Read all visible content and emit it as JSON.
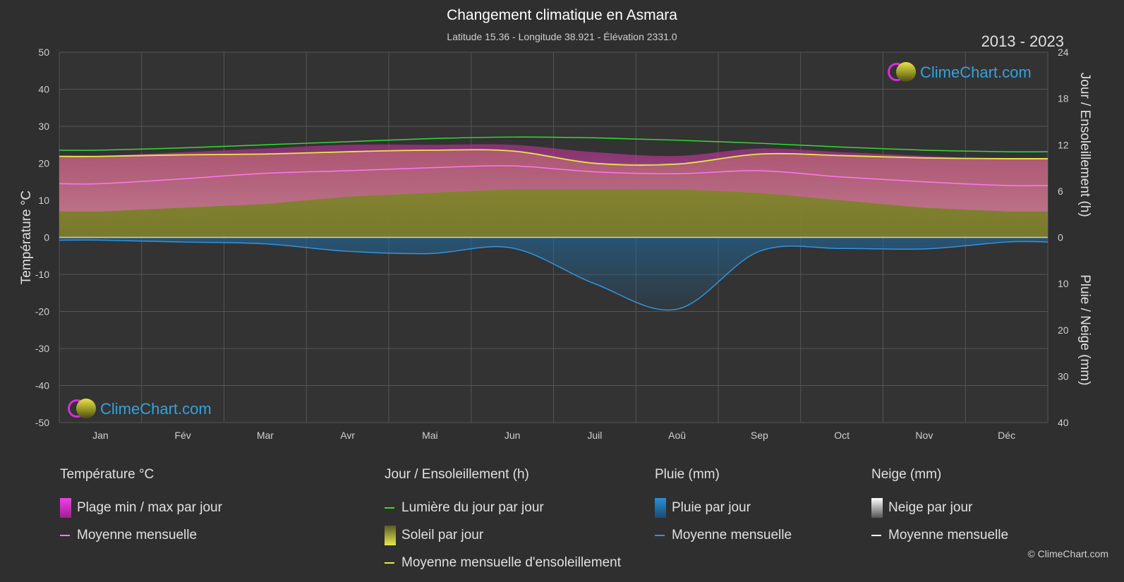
{
  "header": {
    "title": "Changement climatique en Asmara",
    "subtitle": "Latitude 15.36 - Longitude 38.921 - Élévation 2331.0",
    "years": "2013 - 2023"
  },
  "branding": {
    "logo_text": "ClimeChart.com",
    "copyright": "© ClimeChart.com"
  },
  "colors": {
    "background": "#2f2f2f",
    "temp_range": "#e040c8",
    "temp_mean": "#ff77ee",
    "daylight": "#33dd33",
    "sunshine": "#c8c850",
    "sunshine_mean": "#e8e84a",
    "rain": "#2a8fd8",
    "rain_mean": "#2f95e0",
    "snow_mean": "#ffffff"
  },
  "legend": {
    "temperature": {
      "title": "Température °C",
      "range_label": "Plage min / max par jour",
      "mean_label": "Moyenne mensuelle"
    },
    "sun": {
      "title": "Jour / Ensoleillement (h)",
      "daylight_label": "Lumière du jour par jour",
      "sunshine_label": "Soleil par jour",
      "sunshine_mean_label": "Moyenne mensuelle d'ensoleillement"
    },
    "rain": {
      "title": "Pluie (mm)",
      "rain_label": "Pluie par jour",
      "mean_label": "Moyenne mensuelle"
    },
    "snow": {
      "title": "Neige (mm)",
      "snow_label": "Neige par jour",
      "mean_label": "Moyenne mensuelle"
    }
  },
  "chart_data": {
    "type": "line",
    "months": [
      "Jan",
      "Fév",
      "Mar",
      "Avr",
      "Mai",
      "Jun",
      "Juil",
      "Aoû",
      "Sep",
      "Oct",
      "Nov",
      "Déc"
    ],
    "y_left": {
      "label": "Température °C",
      "ticks": [
        50,
        40,
        30,
        20,
        10,
        0,
        -10,
        -20,
        -30,
        -40,
        -50
      ],
      "range": [
        -50,
        50
      ]
    },
    "y_right_top": {
      "label": "Jour / Ensoleillement (h)",
      "ticks": [
        24,
        18,
        12,
        6,
        0
      ],
      "range": [
        0,
        24
      ]
    },
    "y_right_bottom": {
      "label": "Pluie / Neige (mm)",
      "ticks": [
        0,
        10,
        20,
        30,
        40
      ],
      "range": [
        0,
        40
      ]
    },
    "grid": true,
    "series": {
      "temp_max_mean": [
        22,
        23,
        24,
        25,
        25,
        25,
        23,
        22,
        24,
        23,
        22,
        21
      ],
      "temp_min_mean": [
        7,
        8,
        9,
        11,
        12,
        13,
        13,
        13,
        12,
        10,
        8,
        7
      ],
      "temp_mean": [
        14.5,
        15.8,
        17.3,
        18.0,
        18.8,
        19.3,
        17.7,
        17.2,
        18.0,
        16.3,
        15.0,
        14.0
      ],
      "daylight_hours": [
        11.3,
        11.6,
        12.0,
        12.4,
        12.8,
        13.0,
        12.9,
        12.6,
        12.2,
        11.7,
        11.3,
        11.1
      ],
      "sunshine_hours": [
        10.5,
        10.7,
        10.8,
        11.1,
        11.3,
        11.2,
        9.6,
        9.5,
        10.8,
        10.6,
        10.3,
        10.2
      ],
      "rain_mean_mm": [
        0.6,
        1.0,
        1.4,
        3.0,
        3.5,
        2.3,
        10.0,
        15.5,
        3.0,
        2.4,
        2.5,
        1.0
      ],
      "snow_mean_mm": [
        0,
        0,
        0,
        0,
        0,
        0,
        0,
        0,
        0,
        0,
        0,
        0
      ]
    }
  }
}
